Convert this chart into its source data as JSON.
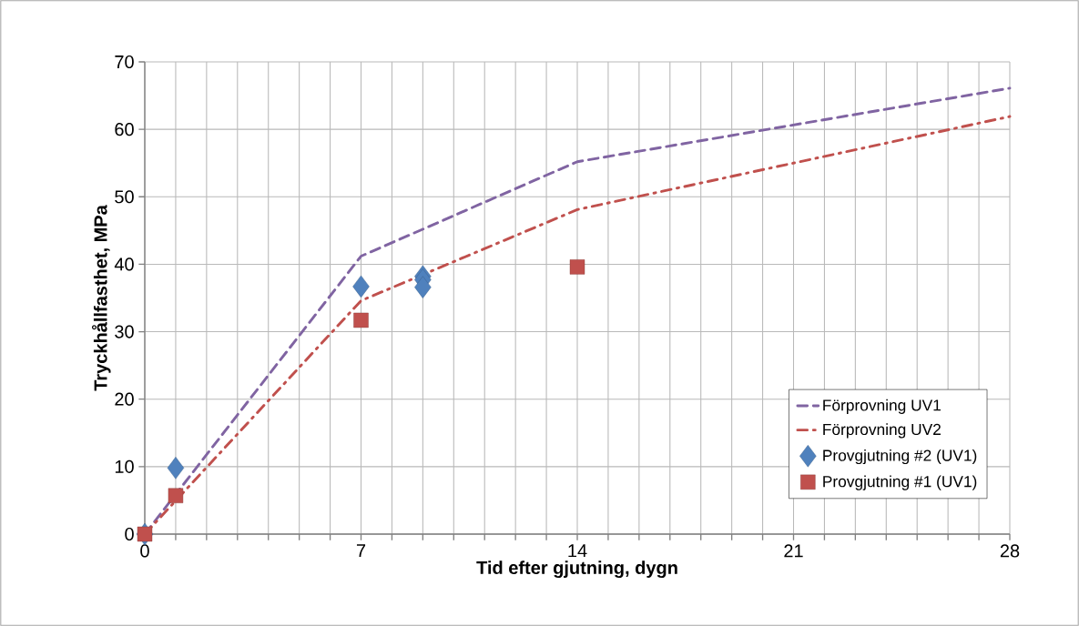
{
  "chart_data": {
    "type": "line",
    "xlabel": "Tid efter gjutning, dygn",
    "ylabel": "Tryckhållfasthet, MPa",
    "xlim": [
      0,
      28
    ],
    "ylim": [
      0,
      70
    ],
    "xticks": [
      0,
      {
        "value": 1,
        "label": null
      },
      {
        "value": 2,
        "label": null
      },
      {
        "value": 3,
        "label": null
      },
      {
        "value": 4,
        "label": null
      },
      {
        "value": 5,
        "label": null
      },
      {
        "value": 6,
        "label": null
      },
      7,
      {
        "value": 8,
        "label": null
      },
      {
        "value": 9,
        "label": null
      },
      {
        "value": 10,
        "label": null
      },
      {
        "value": 11,
        "label": null
      },
      {
        "value": 12,
        "label": null
      },
      {
        "value": 13,
        "label": null
      },
      14,
      {
        "value": 15,
        "label": null
      },
      {
        "value": 16,
        "label": null
      },
      {
        "value": 17,
        "label": null
      },
      {
        "value": 18,
        "label": null
      },
      {
        "value": 19,
        "label": null
      },
      {
        "value": 20,
        "label": null
      },
      21,
      {
        "value": 22,
        "label": null
      },
      {
        "value": 23,
        "label": null
      },
      {
        "value": 24,
        "label": null
      },
      {
        "value": 25,
        "label": null
      },
      {
        "value": 26,
        "label": null
      },
      {
        "value": 27,
        "label": null
      },
      28
    ],
    "yticks": [
      0,
      10,
      20,
      30,
      40,
      50,
      60,
      70
    ],
    "grid": true,
    "legend": "bottom right",
    "series": [
      {
        "name": "Förprovning UV1",
        "color": "#8064a2",
        "line_style": "dashed",
        "marker": "none",
        "x": [
          0,
          7,
          14,
          28
        ],
        "values": [
          0,
          41.2,
          55.2,
          66.1
        ]
      },
      {
        "name": "Förprovning UV2",
        "color": "#c0504d",
        "line_style": "dashdot",
        "marker": "none",
        "x": [
          0,
          7,
          14,
          28
        ],
        "values": [
          0,
          34.6,
          48.1,
          61.9
        ]
      },
      {
        "name": "Provgjutning #2 (UV1)",
        "type": "scatter",
        "color": "#4f81bd",
        "marker": "diamond",
        "x": [
          0,
          1,
          7,
          9,
          9,
          9
        ],
        "values": [
          0,
          9.8,
          36.7,
          38.2,
          37.7,
          36.6
        ]
      },
      {
        "name": "Provgjutning #1 (UV1)",
        "type": "scatter",
        "color": "#c0504d",
        "marker": "square",
        "x": [
          0,
          1,
          7,
          14
        ],
        "values": [
          0,
          5.7,
          31.7,
          39.6
        ]
      }
    ]
  }
}
